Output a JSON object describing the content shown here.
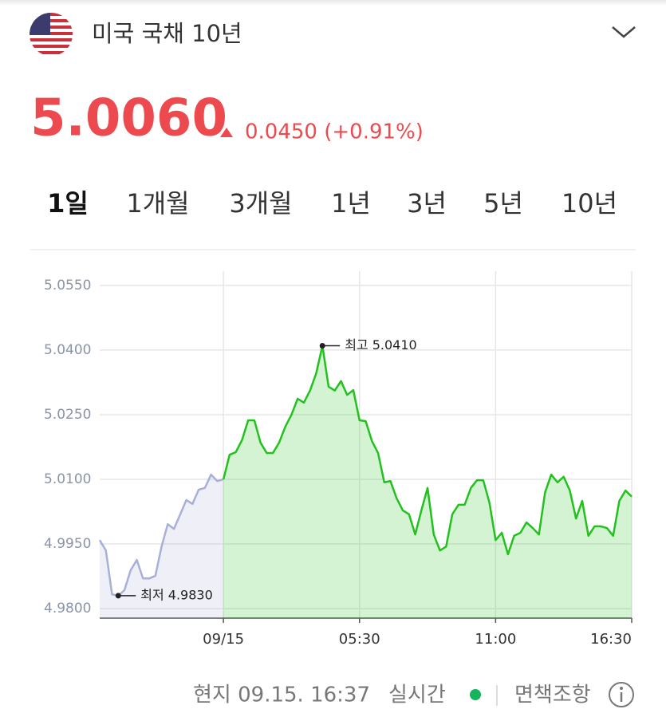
{
  "header": {
    "title": "미국 국채 10년"
  },
  "quote": {
    "price": "5.0060",
    "change": "0.0450 (+0.91%)"
  },
  "tabs": [
    "1일",
    "1개월",
    "3개월",
    "1년",
    "3년",
    "5년",
    "10년"
  ],
  "active_tab": 0,
  "chart_data": {
    "type": "line",
    "categories": [
      null,
      null,
      null,
      null,
      null,
      null,
      null,
      null,
      null,
      null,
      null,
      null,
      null,
      null,
      null,
      null,
      null,
      null,
      null,
      null,
      "09/15",
      null,
      null,
      null,
      null,
      null,
      null,
      null,
      null,
      null,
      null,
      null,
      null,
      null,
      null,
      null,
      null,
      null,
      null,
      null,
      null,
      null,
      "05:30",
      null,
      null,
      null,
      null,
      null,
      null,
      null,
      null,
      null,
      null,
      null,
      null,
      null,
      null,
      null,
      null,
      null,
      null,
      null,
      null,
      null,
      "11:00",
      null,
      null,
      null,
      null,
      null,
      null,
      null,
      null,
      null,
      null,
      null,
      null,
      null,
      null,
      null,
      null,
      null,
      null,
      null,
      null,
      null,
      "16:30"
    ],
    "series": [
      {
        "color": "#a9b0d8",
        "values": [
          4.9959,
          4.9935,
          4.9833,
          4.983,
          4.9843,
          4.9889,
          4.9913,
          4.987,
          4.987,
          4.9876,
          4.9944,
          4.9996,
          4.9985,
          5.0018,
          5.0052,
          5.0043,
          5.0076,
          5.008,
          5.0111,
          5.0096,
          5.01,
          null,
          null,
          null,
          null,
          null,
          null,
          null,
          null,
          null,
          null,
          null,
          null,
          null,
          null,
          null,
          null,
          null,
          null,
          null,
          null,
          null,
          null,
          null,
          null,
          null,
          null,
          null,
          null,
          null,
          null,
          null,
          null,
          null,
          null,
          null,
          null,
          null,
          null,
          null,
          null,
          null,
          null,
          null,
          null,
          null,
          null,
          null,
          null,
          null,
          null,
          null,
          null,
          null,
          null,
          null,
          null,
          null,
          null,
          null,
          null,
          null,
          null,
          null,
          null,
          null,
          null
        ]
      },
      {
        "color": "#22c21e",
        "values": [
          null,
          null,
          null,
          null,
          null,
          null,
          null,
          null,
          null,
          null,
          null,
          null,
          null,
          null,
          null,
          null,
          null,
          null,
          null,
          null,
          5.01,
          5.0157,
          5.0163,
          5.0191,
          5.0237,
          5.0237,
          5.0185,
          5.0161,
          5.0161,
          5.0185,
          5.0222,
          5.025,
          5.0287,
          5.0278,
          5.0306,
          5.0346,
          5.041,
          5.0315,
          5.0306,
          5.0328,
          5.0296,
          5.0307,
          5.0237,
          5.0235,
          5.0189,
          5.0161,
          5.0093,
          5.0096,
          5.0056,
          5.0028,
          5.0019,
          4.9972,
          5.0028,
          5.008,
          4.9972,
          4.9935,
          4.9944,
          5.0019,
          5.0041,
          5.0041,
          5.008,
          5.0098,
          5.0098,
          5.0046,
          4.9959,
          4.9976,
          4.9926,
          4.9969,
          4.9976,
          5.0,
          4.9987,
          4.9972,
          5.007,
          5.0111,
          5.0093,
          5.0106,
          5.0074,
          5.0009,
          5.005,
          4.9969,
          4.9991,
          4.9991,
          4.9987,
          4.9969,
          5.005,
          5.0074,
          5.006
        ]
      }
    ],
    "ylim": [
      4.9778,
      5.0583
    ],
    "yticks": [
      {
        "value": 4.98,
        "label": "4.9800"
      },
      {
        "value": 4.995,
        "label": "4.9950"
      },
      {
        "value": 5.01,
        "label": "5.0100"
      },
      {
        "value": 5.025,
        "label": "5.0250"
      },
      {
        "value": 5.04,
        "label": "5.0400"
      },
      {
        "value": 5.055,
        "label": "5.0550"
      }
    ],
    "grid": true,
    "high_label": "최고 5.0410",
    "low_label": "최저 4.9830"
  },
  "footer": {
    "time": "현지 09.15. 16:37",
    "live": "실시간",
    "disclaimer": "면책조항"
  }
}
